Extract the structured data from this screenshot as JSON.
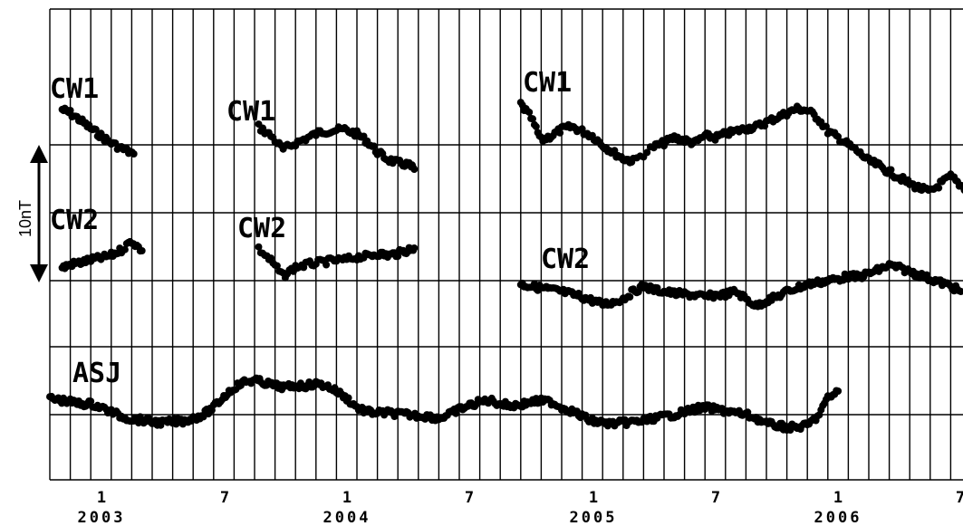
{
  "chart_data": {
    "type": "scatter",
    "title": "",
    "xlabel": "",
    "ylabel": "",
    "x_unit": "month index (0 = 2002-Oct)",
    "x_range": [
      0,
      46
    ],
    "grid": true,
    "scale_bar": {
      "label": "10nT",
      "length_nT": 10
    },
    "x_tick_labels": [
      {
        "month": "1",
        "year": "2003"
      },
      {
        "month": "7",
        "year": ""
      },
      {
        "month": "1",
        "year": "2004"
      },
      {
        "month": "7",
        "year": ""
      },
      {
        "month": "1",
        "year": "2005"
      },
      {
        "month": "7",
        "year": ""
      },
      {
        "month": "1",
        "year": "2006"
      },
      {
        "month": "7",
        "year": ""
      }
    ],
    "series": [
      {
        "name": "CW1",
        "label_pos": "left",
        "points": [
          [
            0.6,
            121
          ],
          [
            1.0,
            125
          ],
          [
            1.5,
            133
          ],
          [
            2.0,
            142
          ],
          [
            2.5,
            150
          ],
          [
            3.0,
            158
          ],
          [
            3.6,
            165
          ],
          [
            4.1,
            170
          ]
        ]
      },
      {
        "name": "CW1",
        "label_pos": "left",
        "points": [
          [
            10.2,
            140
          ],
          [
            10.8,
            150
          ],
          [
            11.4,
            165
          ],
          [
            12.0,
            158
          ],
          [
            12.6,
            152
          ],
          [
            13.2,
            146
          ],
          [
            13.8,
            144
          ],
          [
            14.4,
            143
          ],
          [
            15.0,
            148
          ],
          [
            15.5,
            156
          ],
          [
            16.0,
            168
          ],
          [
            16.5,
            176
          ],
          [
            17.0,
            180
          ],
          [
            17.5,
            182
          ],
          [
            17.8,
            187
          ]
        ]
      },
      {
        "name": "CW1",
        "label_pos": "left",
        "points": [
          [
            23.0,
            115
          ],
          [
            23.5,
            130
          ],
          [
            24.0,
            155
          ],
          [
            24.5,
            150
          ],
          [
            25.0,
            143
          ],
          [
            25.5,
            140
          ],
          [
            26.0,
            145
          ],
          [
            26.5,
            150
          ],
          [
            27.0,
            160
          ],
          [
            27.5,
            168
          ],
          [
            28.0,
            175
          ],
          [
            28.5,
            178
          ],
          [
            29.5,
            162
          ],
          [
            30.0,
            158
          ],
          [
            30.5,
            152
          ],
          [
            31.0,
            155
          ],
          [
            31.5,
            158
          ],
          [
            32.0,
            150
          ],
          [
            32.5,
            152
          ],
          [
            33.0,
            148
          ],
          [
            33.5,
            145
          ],
          [
            34.0,
            142
          ],
          [
            34.5,
            140
          ],
          [
            35.0,
            135
          ],
          [
            35.5,
            130
          ],
          [
            36.0,
            125
          ],
          [
            36.5,
            120
          ],
          [
            37.0,
            122
          ],
          [
            37.5,
            130
          ],
          [
            38.0,
            145
          ],
          [
            38.5,
            152
          ],
          [
            39.0,
            160
          ],
          [
            39.5,
            168
          ],
          [
            40.0,
            178
          ],
          [
            40.5,
            183
          ],
          [
            41.0,
            190
          ],
          [
            41.5,
            196
          ],
          [
            42.0,
            203
          ],
          [
            42.5,
            208
          ],
          [
            43.0,
            212
          ],
          [
            43.5,
            203
          ],
          [
            44.0,
            195
          ],
          [
            44.5,
            205
          ],
          [
            45.0,
            212
          ]
        ]
      },
      {
        "name": "CW2",
        "label_pos": "left",
        "points": [
          [
            0.6,
            296
          ],
          [
            1.0,
            292
          ],
          [
            1.5,
            290
          ],
          [
            2.0,
            287
          ],
          [
            2.5,
            285
          ],
          [
            3.0,
            282
          ],
          [
            3.5,
            276
          ],
          [
            4.0,
            266
          ],
          [
            4.5,
            277
          ]
        ]
      },
      {
        "name": "CW2",
        "label_pos": "left",
        "points": [
          [
            10.2,
            275
          ],
          [
            10.8,
            288
          ],
          [
            11.4,
            305
          ],
          [
            12.0,
            295
          ],
          [
            12.6,
            292
          ],
          [
            13.2,
            290
          ],
          [
            13.8,
            288
          ],
          [
            14.4,
            287
          ],
          [
            15.0,
            284
          ],
          [
            15.5,
            283
          ],
          [
            16.0,
            280
          ],
          [
            16.5,
            282
          ],
          [
            17.0,
            280
          ],
          [
            17.5,
            276
          ],
          [
            17.8,
            274
          ]
        ]
      },
      {
        "name": "CW2",
        "label_pos": "left",
        "points": [
          [
            23.0,
            314
          ],
          [
            23.5,
            316
          ],
          [
            24.0,
            318
          ],
          [
            24.5,
            320
          ],
          [
            25.0,
            322
          ],
          [
            25.5,
            325
          ],
          [
            26.0,
            328
          ],
          [
            26.5,
            332
          ],
          [
            27.0,
            336
          ],
          [
            27.5,
            334
          ],
          [
            28.0,
            330
          ],
          [
            28.5,
            322
          ],
          [
            29.0,
            316
          ],
          [
            29.5,
            320
          ],
          [
            30.0,
            322
          ],
          [
            30.5,
            324
          ],
          [
            31.0,
            325
          ],
          [
            31.5,
            326
          ],
          [
            32.0,
            328
          ],
          [
            32.5,
            326
          ],
          [
            33.0,
            325
          ],
          [
            33.5,
            322
          ],
          [
            34.0,
            330
          ],
          [
            34.5,
            338
          ],
          [
            35.0,
            332
          ],
          [
            35.5,
            328
          ],
          [
            36.0,
            322
          ],
          [
            36.5,
            318
          ],
          [
            37.0,
            314
          ],
          [
            37.5,
            312
          ],
          [
            38.0,
            310
          ],
          [
            38.5,
            308
          ],
          [
            39.0,
            305
          ],
          [
            39.5,
            306
          ],
          [
            40.0,
            302
          ],
          [
            40.5,
            298
          ],
          [
            41.0,
            293
          ],
          [
            41.5,
            296
          ],
          [
            42.0,
            300
          ],
          [
            42.5,
            304
          ],
          [
            43.0,
            308
          ],
          [
            43.5,
            312
          ],
          [
            44.0,
            316
          ],
          [
            44.5,
            322
          ]
        ]
      },
      {
        "name": "ASJ",
        "label_pos": "left",
        "points": [
          [
            0.0,
            440
          ],
          [
            0.5,
            442
          ],
          [
            1.0,
            444
          ],
          [
            1.5,
            446
          ],
          [
            2.0,
            446
          ],
          [
            2.5,
            450
          ],
          [
            3.0,
            455
          ],
          [
            3.5,
            460
          ],
          [
            4.0,
            463
          ],
          [
            4.5,
            464
          ],
          [
            5.0,
            466
          ],
          [
            5.5,
            467
          ],
          [
            6.0,
            466
          ],
          [
            6.5,
            465
          ],
          [
            7.0,
            462
          ],
          [
            7.5,
            458
          ],
          [
            8.0,
            450
          ],
          [
            8.5,
            438
          ],
          [
            9.0,
            428
          ],
          [
            9.5,
            422
          ],
          [
            10.0,
            420
          ],
          [
            10.5,
            423
          ],
          [
            11.0,
            426
          ],
          [
            11.5,
            428
          ],
          [
            12.0,
            426
          ],
          [
            12.5,
            426
          ],
          [
            13.0,
            424
          ],
          [
            13.5,
            426
          ],
          [
            14.0,
            432
          ],
          [
            14.5,
            440
          ],
          [
            15.0,
            450
          ],
          [
            15.5,
            455
          ],
          [
            16.0,
            456
          ],
          [
            16.5,
            456
          ],
          [
            17.0,
            457
          ],
          [
            17.5,
            458
          ],
          [
            18.0,
            459
          ],
          [
            18.5,
            460
          ],
          [
            19.0,
            462
          ],
          [
            19.5,
            458
          ],
          [
            20.0,
            452
          ],
          [
            20.5,
            448
          ],
          [
            21.0,
            444
          ],
          [
            21.5,
            442
          ],
          [
            22.0,
            446
          ],
          [
            22.5,
            448
          ],
          [
            23.0,
            447
          ],
          [
            23.5,
            444
          ],
          [
            24.0,
            443
          ],
          [
            24.5,
            444
          ],
          [
            25.0,
            450
          ],
          [
            25.5,
            454
          ],
          [
            26.0,
            460
          ],
          [
            26.5,
            465
          ],
          [
            27.0,
            467
          ],
          [
            27.5,
            468
          ],
          [
            28.0,
            467
          ],
          [
            28.5,
            466
          ],
          [
            29.0,
            465
          ],
          [
            29.5,
            462
          ],
          [
            30.0,
            460
          ],
          [
            30.5,
            458
          ],
          [
            31.0,
            455
          ],
          [
            31.5,
            452
          ],
          [
            32.0,
            450
          ],
          [
            32.5,
            452
          ],
          [
            33.0,
            454
          ],
          [
            33.5,
            456
          ],
          [
            34.0,
            458
          ],
          [
            34.5,
            462
          ],
          [
            35.0,
            468
          ],
          [
            35.5,
            470
          ],
          [
            36.0,
            472
          ],
          [
            36.5,
            472
          ],
          [
            37.0,
            470
          ],
          [
            37.5,
            460
          ],
          [
            38.0,
            440
          ],
          [
            38.5,
            432
          ]
        ]
      }
    ]
  }
}
